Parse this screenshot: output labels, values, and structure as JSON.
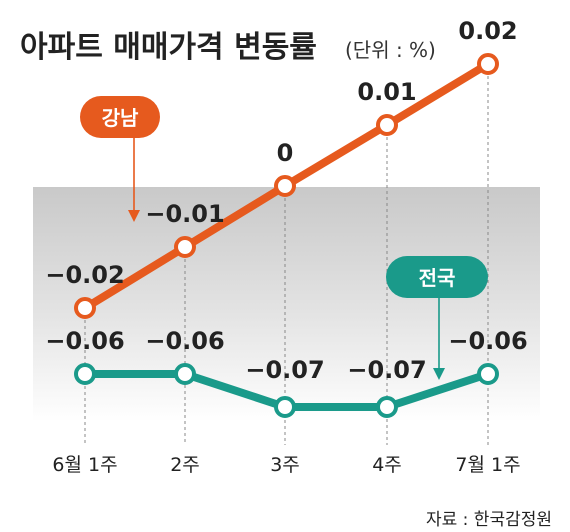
{
  "title": "아파트 매매가격 변동률",
  "unit_note": "(단위 : %)",
  "source": "자료 : 한국감정원",
  "colors": {
    "gangnam": "#E65A1E",
    "national": "#1A9A8A",
    "band": "#D5D5D5",
    "text": "#222222"
  },
  "chart_data": {
    "type": "line",
    "title": "아파트 매매가격 변동률",
    "unit": "%",
    "categories": [
      "6월 1주",
      "2주",
      "3주",
      "4주",
      "7월 1주"
    ],
    "series": [
      {
        "name": "강남",
        "values": [
          -0.02,
          -0.01,
          0,
          0.01,
          0.02
        ],
        "labels": [
          "−0.02",
          "−0.01",
          "0",
          "0.01",
          "0.02"
        ]
      },
      {
        "name": "전국",
        "values": [
          -0.06,
          -0.06,
          -0.07,
          -0.07,
          -0.06
        ],
        "labels": [
          "−0.06",
          "−0.06",
          "−0.07",
          "−0.07",
          "−0.06"
        ]
      }
    ],
    "grid": false,
    "legend": "callout labels"
  }
}
